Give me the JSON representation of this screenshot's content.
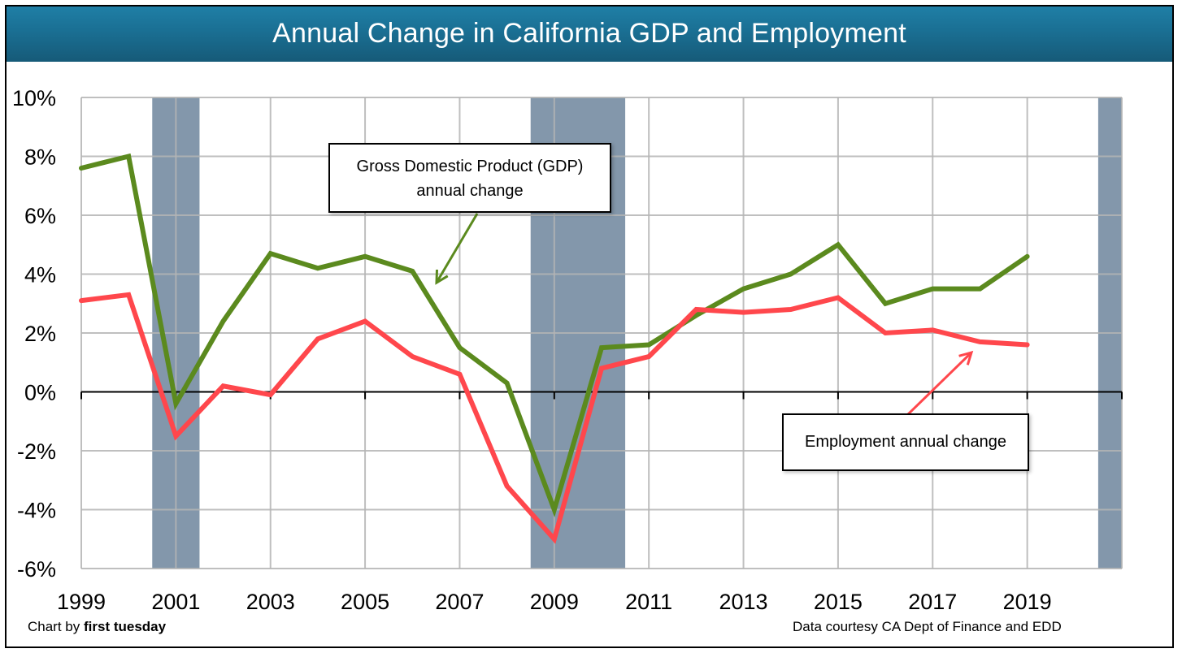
{
  "chart_data": {
    "type": "line",
    "title": "Annual Change in California GDP and Employment",
    "xlabel": "",
    "ylabel": "",
    "x": [
      1999,
      2000,
      2001,
      2002,
      2003,
      2004,
      2005,
      2006,
      2007,
      2008,
      2009,
      2010,
      2011,
      2012,
      2013,
      2014,
      2015,
      2016,
      2017,
      2018,
      2019
    ],
    "x_tick_labels": [
      "1999",
      "2001",
      "2003",
      "2005",
      "2007",
      "2009",
      "2011",
      "2013",
      "2015",
      "2017",
      "2019"
    ],
    "xlim": [
      1999,
      2021
    ],
    "ylim": [
      -6,
      10
    ],
    "y_ticks": [
      10,
      8,
      6,
      4,
      2,
      0,
      -2,
      -4,
      -6
    ],
    "y_tick_labels": [
      "10%",
      "8%",
      "6%",
      "4%",
      "2%",
      "0%",
      "-2%",
      "-4%",
      "-6%"
    ],
    "grid": true,
    "series": [
      {
        "name": "Gross Domestic Product (GDP) annual change",
        "color": "#5b8a1e",
        "values": [
          7.6,
          8.0,
          -0.4,
          2.4,
          4.7,
          4.2,
          4.6,
          4.1,
          1.5,
          0.3,
          -4.0,
          1.5,
          1.6,
          2.6,
          3.5,
          4.0,
          5.0,
          3.0,
          3.5,
          3.5,
          4.6
        ]
      },
      {
        "name": "Employment annual change",
        "color": "#ff474c",
        "values": [
          3.1,
          3.3,
          -1.5,
          0.2,
          -0.1,
          1.8,
          2.4,
          1.2,
          0.6,
          -3.2,
          -5.0,
          0.8,
          1.2,
          2.8,
          2.7,
          2.8,
          3.2,
          2.0,
          2.1,
          1.7,
          1.6
        ]
      }
    ],
    "recession_bands": [
      {
        "start": 2000.5,
        "end": 2001.5
      },
      {
        "start": 2008.5,
        "end": 2010.5
      },
      {
        "start": 2020.5,
        "end": 2021.0
      }
    ],
    "band_color": "#8397ab",
    "annotations": [
      {
        "text_line1": "Gross Domestic Product (GDP)",
        "text_line2": "annual change",
        "series": "GDP"
      },
      {
        "text_line1": "Employment annual change",
        "series": "Employment"
      }
    ],
    "legend": "none"
  },
  "header": {
    "title": "Annual Change in California GDP and Employment"
  },
  "annotations": {
    "gdp_line1": "Gross Domestic Product (GDP)",
    "gdp_line2": "annual change",
    "employment": "Employment annual change"
  },
  "footer": {
    "credit_prefix": "Chart by ",
    "credit_name": "first tuesday",
    "source": "Data courtesy CA Dept of Finance and EDD"
  }
}
